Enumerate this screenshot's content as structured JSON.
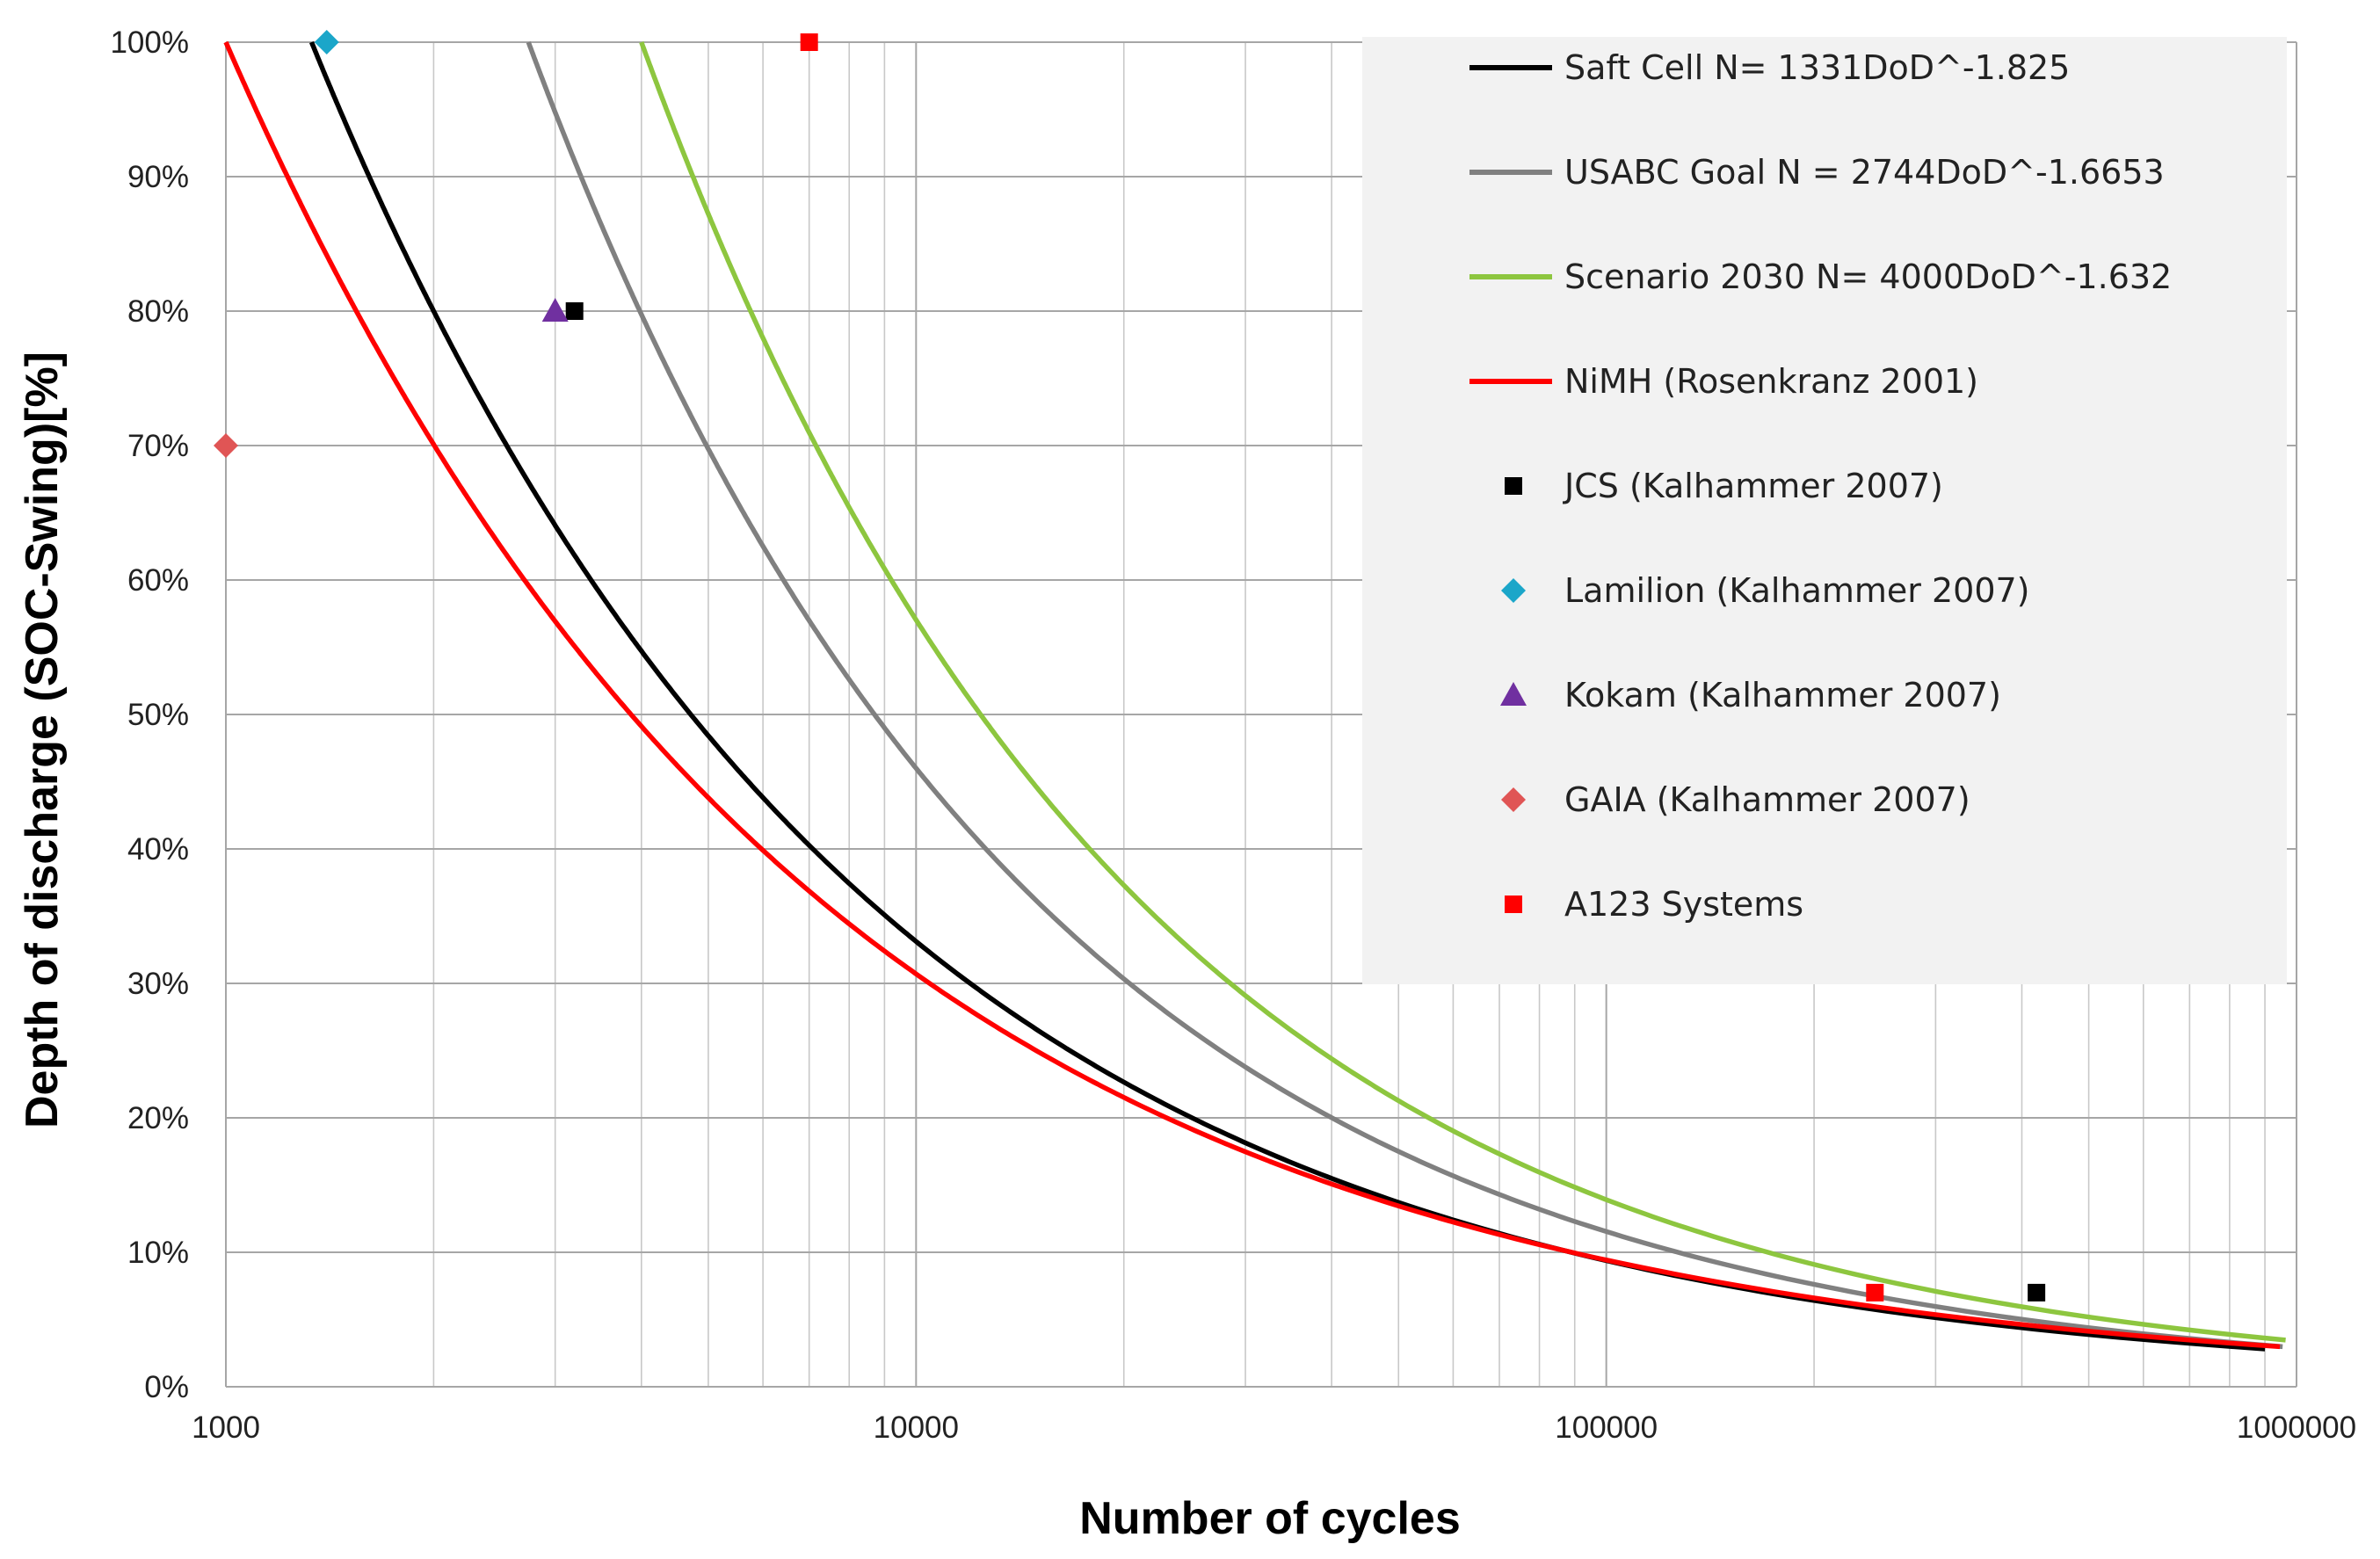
{
  "chart_data": {
    "type": "line",
    "xlabel": "Number of cycles",
    "ylabel": "Depth of discharge (SOC-Swing)[%]",
    "xscale": "log",
    "xlim": [
      1000,
      1000000
    ],
    "ylim": [
      0,
      100
    ],
    "x_ticks": [
      1000,
      10000,
      100000,
      1000000
    ],
    "x_tick_labels": [
      "1000",
      "10000",
      "100000",
      "1000000"
    ],
    "y_ticks": [
      0,
      10,
      20,
      30,
      40,
      50,
      60,
      70,
      80,
      90,
      100
    ],
    "y_tick_labels": [
      "0%",
      "10%",
      "20%",
      "30%",
      "40%",
      "50%",
      "60%",
      "70%",
      "80%",
      "90%",
      "100%"
    ],
    "grid": true,
    "legend_position": "top-right",
    "series": [
      {
        "name": "Saft Cell  N= 1331DoD^-1.825",
        "kind": "curve",
        "coef": 1331,
        "exponent": -1.825,
        "color": "#000000"
      },
      {
        "name": "USABC Goal N = 2744DoD^-1.6653",
        "kind": "curve",
        "coef": 2744,
        "exponent": -1.6653,
        "color": "#808080"
      },
      {
        "name": "Scenario 2030 N= 4000DoD^-1.632",
        "kind": "curve",
        "coef": 4000,
        "exponent": -1.632,
        "color": "#8dc63f"
      },
      {
        "name": "NiMH (Rosenkranz 2001)",
        "kind": "curve",
        "coef": 1000,
        "exponent": -1.95,
        "color": "#ff0000"
      },
      {
        "name": "JCS (Kalhammer 2007)",
        "kind": "points",
        "marker": "square",
        "color": "#000000",
        "points": [
          [
            3200,
            80
          ],
          [
            420000,
            7
          ]
        ]
      },
      {
        "name": "Lamilion (Kalhammer 2007)",
        "kind": "points",
        "marker": "diamond",
        "color": "#1ba6c9",
        "points": [
          [
            1400,
            100
          ]
        ]
      },
      {
        "name": "Kokam (Kalhammer 2007)",
        "kind": "points",
        "marker": "triangle",
        "color": "#7030a0",
        "points": [
          [
            3000,
            80
          ]
        ]
      },
      {
        "name": "GAIA (Kalhammer 2007)",
        "kind": "points",
        "marker": "diamond",
        "color": "#e05555",
        "points": [
          [
            1000,
            70
          ]
        ]
      },
      {
        "name": "A123 Systems",
        "kind": "points",
        "marker": "square",
        "color": "#ff0000",
        "points": [
          [
            7000,
            100
          ],
          [
            245000,
            7
          ]
        ]
      }
    ]
  }
}
